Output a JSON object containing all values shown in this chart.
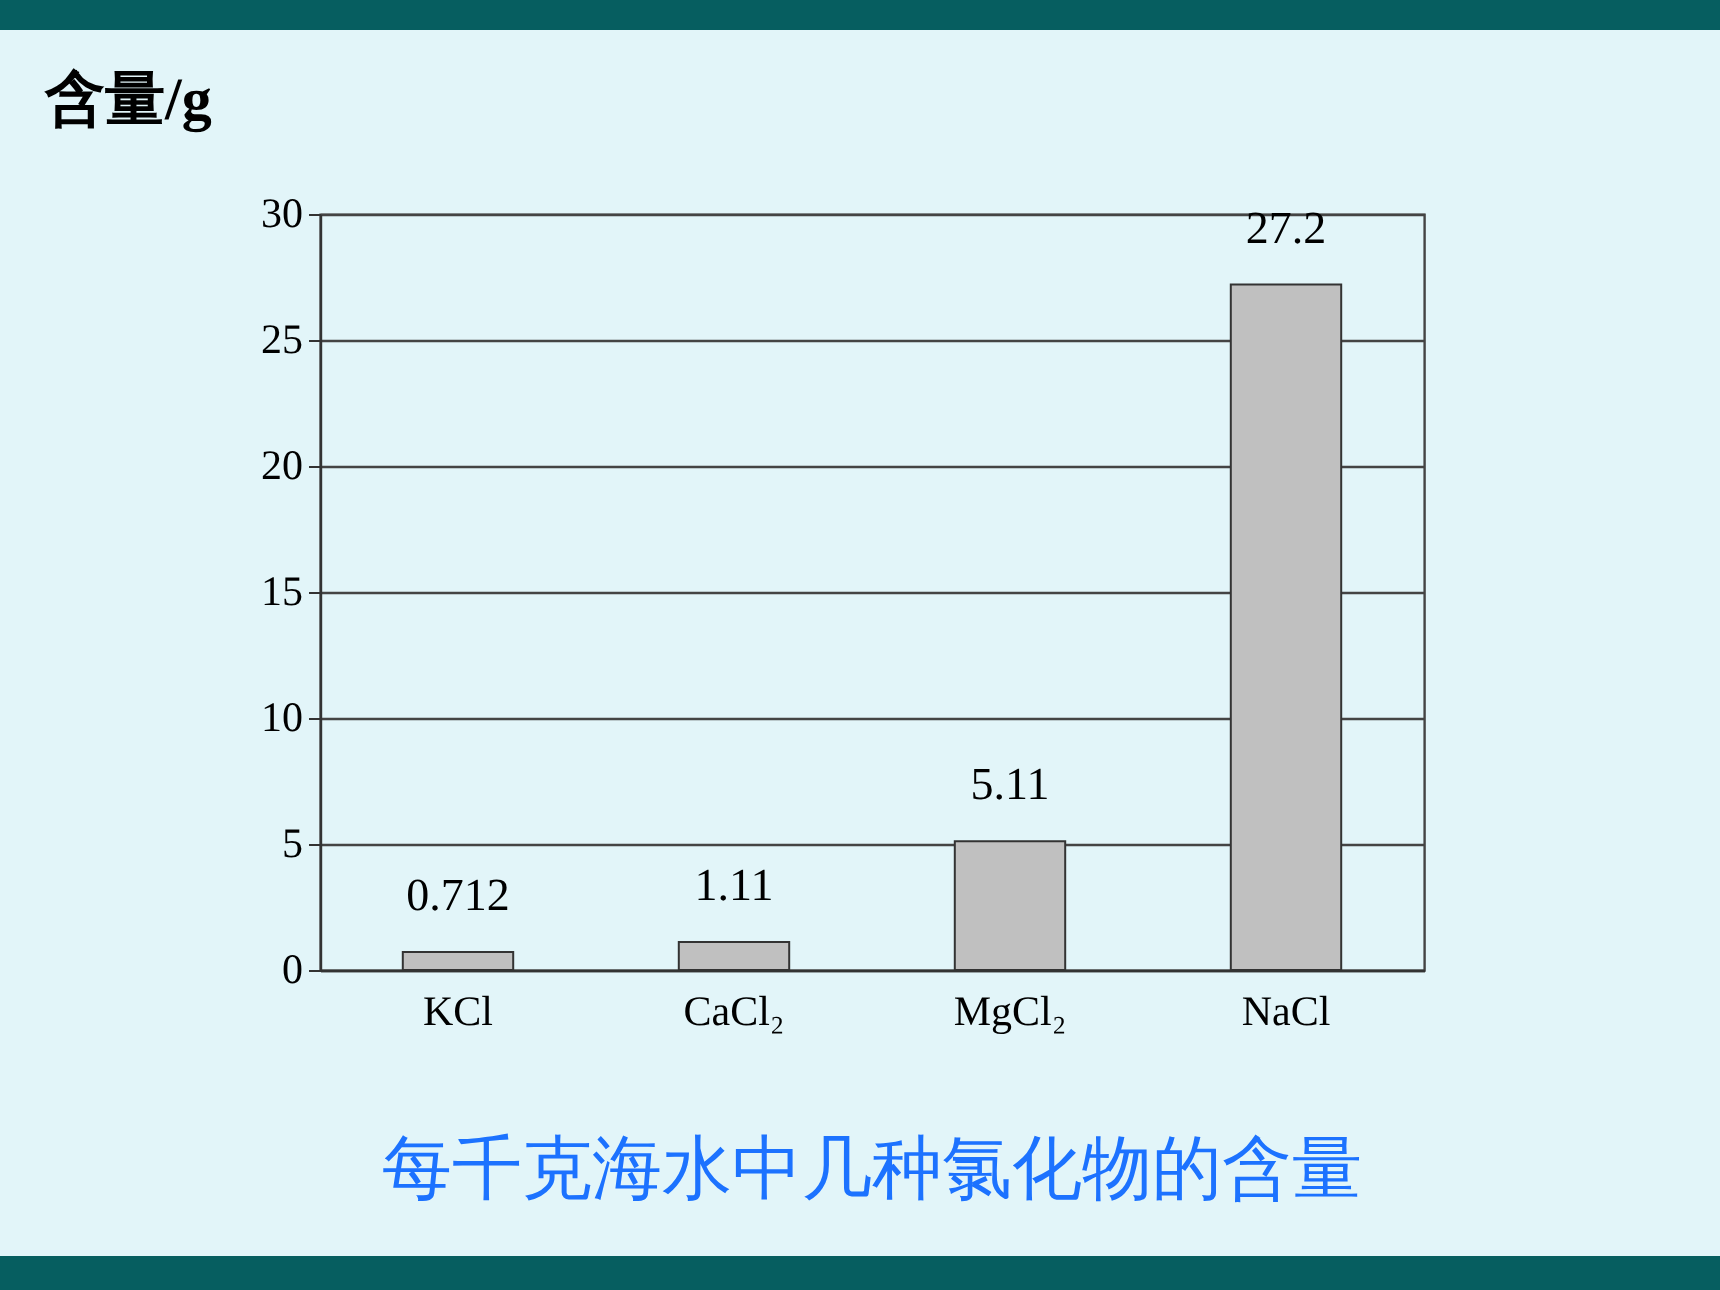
{
  "chart_data": {
    "type": "bar",
    "title": "每千克海水中几种氯化物的含量",
    "ylabel": "含量/g",
    "categories": [
      "KCl",
      "CaCl₂",
      "MgCl₂",
      "NaCl"
    ],
    "values": [
      0.712,
      1.11,
      5.11,
      27.2
    ],
    "color": "#c0c0c0",
    "ylim": [
      0,
      30
    ],
    "yticks": [
      0,
      5,
      10,
      15,
      20,
      25,
      30
    ],
    "grid": "y",
    "data_labels": true
  }
}
